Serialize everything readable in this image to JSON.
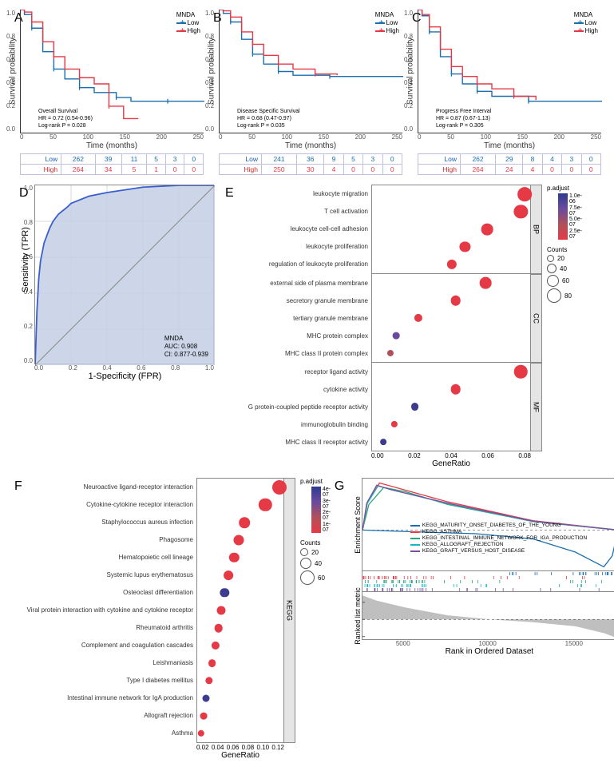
{
  "colors": {
    "low": "#1a6fb0",
    "high": "#e63946",
    "roc_line": "#3a5fcd",
    "roc_fill": "#c3cfe4",
    "grid": "#dadada"
  },
  "km_common": {
    "x_ticks": [
      0,
      50,
      100,
      150,
      200,
      250
    ],
    "y_ticks": [
      "0.0",
      "0.2",
      "0.4",
      "0.6",
      "0.8",
      "1.0"
    ],
    "x_label": "Time (months)",
    "y_label": "Survival probability",
    "legend_title": "MNDA",
    "legend_low": "Low",
    "legend_high": "High"
  },
  "km_panels": [
    {
      "label": "A",
      "title": "Overall Survival",
      "hr": "HR = 0.72 (0.54-0.96)",
      "p": "Log-rank P = 0.028",
      "low_curve": [
        [
          0,
          1.0
        ],
        [
          5,
          0.96
        ],
        [
          15,
          0.85
        ],
        [
          30,
          0.66
        ],
        [
          45,
          0.52
        ],
        [
          60,
          0.44
        ],
        [
          80,
          0.37
        ],
        [
          100,
          0.33
        ],
        [
          130,
          0.29
        ],
        [
          150,
          0.26
        ],
        [
          200,
          0.26
        ],
        [
          250,
          0.26
        ]
      ],
      "high_curve": [
        [
          0,
          1.0
        ],
        [
          5,
          0.98
        ],
        [
          15,
          0.9
        ],
        [
          30,
          0.74
        ],
        [
          45,
          0.62
        ],
        [
          60,
          0.52
        ],
        [
          80,
          0.45
        ],
        [
          100,
          0.4
        ],
        [
          120,
          0.22
        ],
        [
          140,
          0.12
        ],
        [
          160,
          0.12
        ]
      ],
      "risk_low": [
        262,
        39,
        11,
        5,
        3,
        0
      ],
      "risk_high": [
        264,
        34,
        5,
        1,
        0,
        0
      ]
    },
    {
      "label": "B",
      "title": "Disease Specific Survival",
      "hr": "HR = 0.68 (0.47-0.97)",
      "p": "Log-rank P = 0.035",
      "low_curve": [
        [
          0,
          1.0
        ],
        [
          5,
          0.97
        ],
        [
          15,
          0.9
        ],
        [
          30,
          0.76
        ],
        [
          45,
          0.64
        ],
        [
          60,
          0.56
        ],
        [
          80,
          0.5
        ],
        [
          100,
          0.47
        ],
        [
          150,
          0.46
        ],
        [
          250,
          0.46
        ]
      ],
      "high_curve": [
        [
          0,
          1.0
        ],
        [
          5,
          0.99
        ],
        [
          15,
          0.94
        ],
        [
          30,
          0.82
        ],
        [
          45,
          0.72
        ],
        [
          60,
          0.63
        ],
        [
          80,
          0.56
        ],
        [
          100,
          0.52
        ],
        [
          130,
          0.48
        ],
        [
          160,
          0.47
        ]
      ],
      "risk_low": [
        241,
        36,
        9,
        5,
        3,
        0
      ],
      "risk_high": [
        250,
        30,
        4,
        0,
        0,
        0
      ]
    },
    {
      "label": "C",
      "title": "Progress Free Interval",
      "hr": "HR = 0.87 (0.67-1.13)",
      "p": "Log-rank P = 0.305",
      "low_curve": [
        [
          0,
          1.0
        ],
        [
          5,
          0.95
        ],
        [
          15,
          0.82
        ],
        [
          30,
          0.62
        ],
        [
          45,
          0.48
        ],
        [
          60,
          0.4
        ],
        [
          80,
          0.34
        ],
        [
          100,
          0.3
        ],
        [
          150,
          0.26
        ],
        [
          250,
          0.26
        ]
      ],
      "high_curve": [
        [
          0,
          1.0
        ],
        [
          5,
          0.96
        ],
        [
          15,
          0.86
        ],
        [
          30,
          0.68
        ],
        [
          45,
          0.54
        ],
        [
          60,
          0.46
        ],
        [
          80,
          0.4
        ],
        [
          100,
          0.36
        ],
        [
          130,
          0.3
        ],
        [
          160,
          0.27
        ]
      ],
      "risk_low": [
        262,
        29,
        8,
        4,
        3,
        0
      ],
      "risk_high": [
        264,
        24,
        4,
        0,
        0,
        0
      ]
    }
  ],
  "roc": {
    "label": "D",
    "y_label": "Sensitivity (TPR)",
    "x_label": "1-Specificity (FPR)",
    "ticks": [
      "0.0",
      "0.2",
      "0.4",
      "0.6",
      "0.8",
      "1.0"
    ],
    "caption_title": "MNDA",
    "auc": "AUC: 0.908",
    "ci": "CI: 0.877-0.939",
    "curve": [
      [
        0,
        0
      ],
      [
        0.01,
        0.3
      ],
      [
        0.02,
        0.48
      ],
      [
        0.03,
        0.58
      ],
      [
        0.05,
        0.68
      ],
      [
        0.08,
        0.76
      ],
      [
        0.1,
        0.8
      ],
      [
        0.13,
        0.84
      ],
      [
        0.18,
        0.88
      ],
      [
        0.2,
        0.9
      ],
      [
        0.3,
        0.94
      ],
      [
        0.4,
        0.96
      ],
      [
        0.6,
        0.99
      ],
      [
        0.8,
        1.0
      ],
      [
        1.0,
        1.0
      ]
    ]
  },
  "panelE": {
    "label": "E",
    "x_label": "GeneRatio",
    "x_ticks": [
      "0.00",
      "0.02",
      "0.04",
      "0.06",
      "0.08"
    ],
    "x_min": 0.0,
    "x_max": 0.085,
    "padjust_title": "p.adjust",
    "padjust_ticks": [
      "1.0e-06",
      "7.5e-07",
      "5.0e-07",
      "2.5e-07"
    ],
    "counts_title": "Counts",
    "counts_legend": [
      20,
      40,
      60,
      80
    ],
    "facets": [
      {
        "name": "BP",
        "terms": [
          {
            "term": "leukocyte migration",
            "ratio": 0.082,
            "count": 78,
            "color": "#e63946"
          },
          {
            "term": "T cell activation",
            "ratio": 0.08,
            "count": 75,
            "color": "#e63946"
          },
          {
            "term": "leukocyte cell-cell adhesion",
            "ratio": 0.062,
            "count": 58,
            "color": "#e63946"
          },
          {
            "term": "leukocyte proliferation",
            "ratio": 0.05,
            "count": 48,
            "color": "#e63946"
          },
          {
            "term": "regulation of leukocyte proliferation",
            "ratio": 0.043,
            "count": 42,
            "color": "#e63946"
          }
        ]
      },
      {
        "name": "CC",
        "terms": [
          {
            "term": "external side of plasma membrane",
            "ratio": 0.061,
            "count": 58,
            "color": "#e63946"
          },
          {
            "term": "secretory granule membrane",
            "ratio": 0.045,
            "count": 44,
            "color": "#e63946"
          },
          {
            "term": "tertiary granule membrane",
            "ratio": 0.025,
            "count": 28,
            "color": "#e63946"
          },
          {
            "term": "MHC protein complex",
            "ratio": 0.013,
            "count": 18,
            "color": "#6a4a9e"
          },
          {
            "term": "MHC class II protein complex",
            "ratio": 0.01,
            "count": 14,
            "color": "#b0505a"
          }
        ]
      },
      {
        "name": "MF",
        "terms": [
          {
            "term": "receptor ligand activity",
            "ratio": 0.08,
            "count": 70,
            "color": "#e63946"
          },
          {
            "term": "cytokine activity",
            "ratio": 0.045,
            "count": 44,
            "color": "#e63946"
          },
          {
            "term": "G protein-coupled peptide receptor activity",
            "ratio": 0.023,
            "count": 26,
            "color": "#3d3b8e"
          },
          {
            "term": "immunoglobulin binding",
            "ratio": 0.012,
            "count": 15,
            "color": "#e63946"
          },
          {
            "term": "MHC class II receptor activity",
            "ratio": 0.006,
            "count": 12,
            "color": "#3d3b8e"
          }
        ]
      }
    ]
  },
  "panelF": {
    "label": "F",
    "x_label": "GeneRatio",
    "x_ticks": [
      "0.02",
      "0.04",
      "0.06",
      "0.08",
      "0.10",
      "0.12"
    ],
    "x_min": 0.015,
    "x_max": 0.125,
    "strip": "KEGG",
    "padjust_title": "p.adjust",
    "padjust_ticks": [
      "4e-07",
      "3e-07",
      "2e-07",
      "1e-07"
    ],
    "counts_title": "Counts",
    "counts_legend": [
      20,
      40,
      60
    ],
    "terms": [
      {
        "term": "Neuroactive ligand-receptor interaction",
        "ratio": 0.12,
        "count": 60,
        "color": "#e63946"
      },
      {
        "term": "Cytokine-cytokine receptor interaction",
        "ratio": 0.102,
        "count": 52,
        "color": "#e63946"
      },
      {
        "term": "Staphylococcus aureus infection",
        "ratio": 0.075,
        "count": 38,
        "color": "#e63946"
      },
      {
        "term": "Phagosome",
        "ratio": 0.068,
        "count": 35,
        "color": "#e63946"
      },
      {
        "term": "Hematopoietic cell lineage",
        "ratio": 0.062,
        "count": 32,
        "color": "#e63946"
      },
      {
        "term": "Systemic lupus erythematosus",
        "ratio": 0.055,
        "count": 29,
        "color": "#e63946"
      },
      {
        "term": "Osteoclast differentiation",
        "ratio": 0.05,
        "count": 27,
        "color": "#3d3b8e"
      },
      {
        "term": "Viral protein interaction with cytokine and cytokine receptor",
        "ratio": 0.046,
        "count": 25,
        "color": "#e63946"
      },
      {
        "term": "Rheumatoid arthritis",
        "ratio": 0.042,
        "count": 23,
        "color": "#e63946"
      },
      {
        "term": "Complement and coagulation cascades",
        "ratio": 0.038,
        "count": 21,
        "color": "#e63946"
      },
      {
        "term": "Leishmaniasis",
        "ratio": 0.034,
        "count": 19,
        "color": "#e63946"
      },
      {
        "term": "Type I diabetes mellitus",
        "ratio": 0.03,
        "count": 17,
        "color": "#e63946"
      },
      {
        "term": "Intestinal immune network for IgA production",
        "ratio": 0.026,
        "count": 15,
        "color": "#3d3b8e"
      },
      {
        "term": "Allograft rejection",
        "ratio": 0.023,
        "count": 14,
        "color": "#e63946"
      },
      {
        "term": "Asthma",
        "ratio": 0.02,
        "count": 12,
        "color": "#e63946"
      }
    ]
  },
  "panelG": {
    "label": "G",
    "enrich_y_label": "Enrichment Score",
    "rank_y_label": "Ranked list metric",
    "x_label": "Rank in Ordered Dataset",
    "x_ticks": [
      5000,
      10000,
      15000
    ],
    "x_max": 18000,
    "pathways": [
      {
        "name": "KEGG_MATURITY_ONSET_DIABETES_OF_THE_YOUNG",
        "color": "#1a6fb0",
        "peak": -0.5,
        "shape": "neg"
      },
      {
        "name": "KEGG_ASTHMA",
        "color": "#e63946",
        "peak": 0.64,
        "peakx": 1200
      },
      {
        "name": "KEGG_INTESTINAL_IMMUNE_NETWORK_FOR_IGA_PRODUCTION",
        "color": "#2aa37a",
        "peak": 0.58,
        "peakx": 1500
      },
      {
        "name": "KEGG_ALLOGRAFT_REJECTION",
        "color": "#18b5c4",
        "peak": 0.6,
        "peakx": 1100
      },
      {
        "name": "KEGG_GRAFT_VERSUS_HOST_DISEASE",
        "color": "#7b4fa0",
        "peak": 0.61,
        "peakx": 1000
      }
    ],
    "rank_curve": [
      [
        0,
        0.7
      ],
      [
        1000,
        0.55
      ],
      [
        3000,
        0.35
      ],
      [
        6000,
        0.12
      ],
      [
        9000,
        0.0
      ],
      [
        12000,
        -0.08
      ],
      [
        15000,
        -0.2
      ],
      [
        17000,
        -0.4
      ],
      [
        18000,
        -0.55
      ]
    ]
  }
}
